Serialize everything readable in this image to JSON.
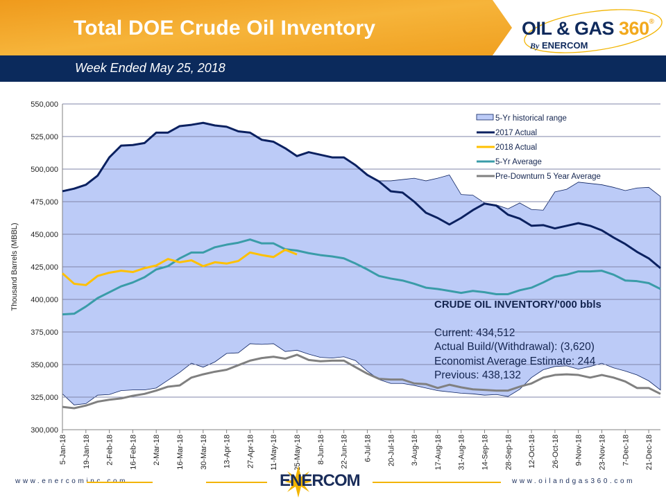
{
  "header": {
    "title": "Total DOE Crude Oil Inventory",
    "subtitle": "Week Ended May 25, 2018",
    "logo_text": "OIL & GAS 360",
    "logo_byline": "By ENERCOM"
  },
  "footer": {
    "left_url": "www.enercominc.com",
    "right_url": "www.oilandgas360.com",
    "center_logo": "ENERCOM"
  },
  "colors": {
    "header_orange": "#f3a424",
    "band_navy": "#0b2a5c",
    "range_fill": "#bccbf7",
    "actual_2017": "#0b2160",
    "actual_2018": "#ffc000",
    "avg_5yr": "#3a9ca8",
    "pre_downturn": "#808080"
  },
  "annotation": {
    "heading": "CRUDE OIL INVENTORY/'000 bbls",
    "current": "Current:  434,512",
    "build": "Actual Build/(Withdrawal):  (3,620)",
    "estimate": "Economist Average Estimate: 244",
    "previous": "Previous:  438,132"
  },
  "chart_data": {
    "type": "line",
    "title": "Total DOE Crude Oil Inventory",
    "ylabel": "Thousand Barrels (MBBL)",
    "xlabel": "",
    "ylim": [
      300000,
      550000
    ],
    "yticks": [
      "300,000",
      "325,000",
      "350,000",
      "375,000",
      "400,000",
      "425,000",
      "450,000",
      "475,000",
      "500,000",
      "525,000",
      "550,000"
    ],
    "xtick_labels": [
      "5-Jan-18",
      "19-Jan-18",
      "2-Feb-18",
      "16-Feb-18",
      "2-Mar-18",
      "16-Mar-18",
      "30-Mar-18",
      "13-Apr-18",
      "27-Apr-18",
      "11-May-18",
      "25-May-18",
      "8-Jun-18",
      "22-Jun-18",
      "6-Jul-18",
      "20-Jul-18",
      "3-Aug-18",
      "17-Aug-18",
      "31-Aug-18",
      "14-Sep-18",
      "28-Sep-18",
      "12-Oct-18",
      "26-Oct-18",
      "9-Nov-18",
      "23-Nov-18",
      "7-Dec-18",
      "21-Dec-18"
    ],
    "x_weeks": 52,
    "grid": true,
    "legend_placement": "top-right",
    "range": {
      "name": "5-Yr historical range",
      "upper": [
        483000,
        485000,
        488000,
        495000,
        509000,
        518000,
        518500,
        520000,
        528000,
        528000,
        533000,
        534000,
        535500,
        533500,
        532500,
        529000,
        528000,
        522500,
        521000,
        516000,
        510000,
        513000,
        511000,
        509000,
        509000,
        503000,
        495500,
        491000,
        491000,
        492000,
        493000,
        491000,
        493000,
        495500,
        480500,
        480000,
        474000,
        472500,
        469500,
        474000,
        469000,
        468500,
        482500,
        484500,
        490000,
        489000,
        488000,
        486000,
        483500,
        485500,
        486000,
        479000
      ],
      "lower": [
        327500,
        319000,
        320000,
        326500,
        327000,
        330000,
        330500,
        330500,
        332000,
        338000,
        344000,
        351000,
        348000,
        352000,
        358500,
        359000,
        366000,
        365500,
        366000,
        360000,
        361000,
        358000,
        355500,
        355000,
        356000,
        353000,
        345000,
        338500,
        335500,
        335500,
        334000,
        332000,
        330000,
        329000,
        328000,
        327500,
        326500,
        327000,
        325500,
        331000,
        340000,
        346000,
        348500,
        349000,
        346500,
        348500,
        351000,
        347500,
        345000,
        342000,
        337500,
        330500
      ]
    },
    "series": [
      {
        "name": "2017 Actual",
        "values": [
          483000,
          485000,
          488000,
          495000,
          509000,
          518000,
          518500,
          520000,
          528000,
          528000,
          533000,
          534000,
          535500,
          533500,
          532500,
          529000,
          528000,
          522500,
          521000,
          516000,
          510000,
          513000,
          511000,
          509000,
          509000,
          503000,
          495500,
          490500,
          483000,
          482000,
          475000,
          466500,
          462500,
          457500,
          462500,
          468500,
          473500,
          472000,
          465000,
          462000,
          456500,
          457000,
          454500,
          456500,
          458500,
          456500,
          453000,
          447500,
          442500,
          436500,
          431500,
          424000
        ]
      },
      {
        "name": "2018 Actual",
        "values": [
          420000,
          412000,
          411000,
          418000,
          420500,
          422000,
          421000,
          424000,
          426000,
          431000,
          428500,
          430000,
          425500,
          428500,
          427500,
          429500,
          436000,
          434000,
          432500,
          438132,
          434512
        ]
      },
      {
        "name": "5-Yr Average",
        "values": [
          388500,
          389000,
          394500,
          401000,
          405500,
          410000,
          413000,
          417000,
          423000,
          425500,
          431500,
          436000,
          436000,
          440000,
          442000,
          443500,
          446000,
          443000,
          443000,
          438500,
          437500,
          435500,
          434000,
          433000,
          431500,
          427500,
          423000,
          418000,
          416000,
          414500,
          412000,
          409000,
          408000,
          406500,
          405000,
          406500,
          405500,
          404000,
          404000,
          407000,
          409000,
          413000,
          417500,
          419000,
          421500,
          421500,
          422000,
          419000,
          414500,
          414000,
          412500,
          408000
        ]
      },
      {
        "name": "Pre-Downturn 5 Year Average",
        "values": [
          317500,
          316500,
          318500,
          321500,
          323000,
          324000,
          326000,
          327500,
          330000,
          333000,
          334000,
          340000,
          342500,
          344500,
          346000,
          349500,
          353000,
          355000,
          356000,
          354500,
          357500,
          353500,
          352500,
          353000,
          353000,
          348000,
          343000,
          339000,
          338500,
          338500,
          335500,
          335000,
          332000,
          334500,
          332500,
          331000,
          330500,
          330000,
          330000,
          333000,
          335500,
          340000,
          342000,
          342500,
          342000,
          340000,
          342000,
          340000,
          337000,
          332000,
          332000,
          327500
        ]
      }
    ]
  }
}
